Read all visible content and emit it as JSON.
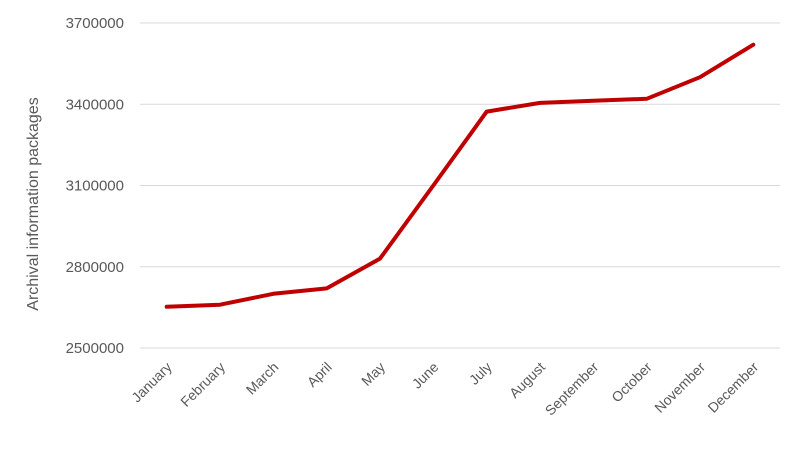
{
  "chart_data": {
    "type": "line",
    "categories": [
      "January",
      "February",
      "March",
      "April",
      "May",
      "June",
      "July",
      "August",
      "September",
      "October",
      "November",
      "December"
    ],
    "series": [
      {
        "values": [
          2652000,
          2660000,
          2700000,
          2720000,
          2830000,
          3100000,
          3373000,
          3405000,
          3413000,
          3420000,
          3500000,
          3620000
        ],
        "color": "#c00000"
      }
    ],
    "ylabel": "Archival information packages",
    "xlabel": "",
    "ylim": [
      2500000,
      3700000
    ],
    "yticks": [
      "2500000",
      "2800000",
      "3100000",
      "3400000",
      "3700000"
    ],
    "ytick_values": [
      2500000,
      2800000,
      3100000,
      3400000,
      3700000
    ],
    "grid": true,
    "legend": "none"
  }
}
